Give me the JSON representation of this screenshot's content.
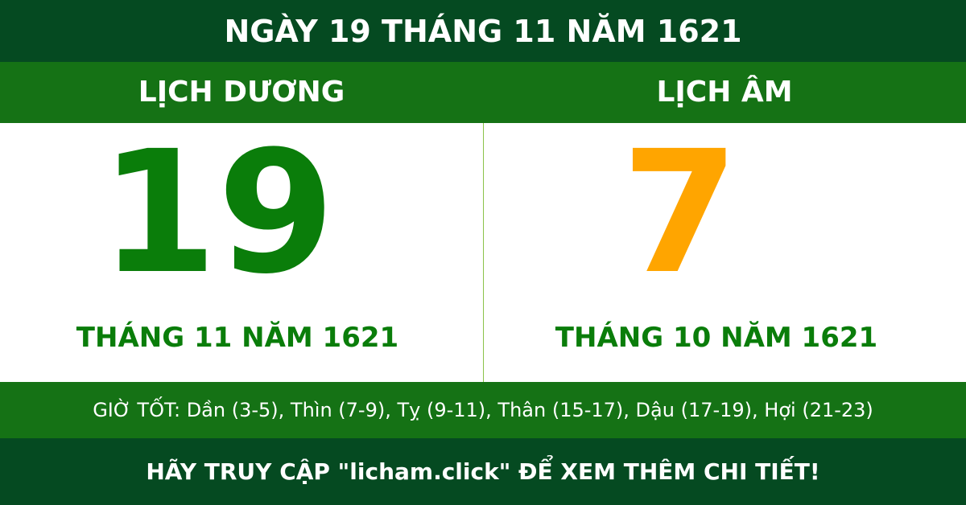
{
  "header": {
    "title": "NGÀY 19 THÁNG 11 NĂM 1621"
  },
  "solar": {
    "label": "LỊCH DƯƠNG",
    "day": "19",
    "month_year": "THÁNG 11 NĂM 1621"
  },
  "lunar": {
    "label": "LỊCH ÂM",
    "day": "7",
    "month_year": "THÁNG 10 NĂM 1621"
  },
  "good_hours": "GIỜ TỐT: Dần (3-5), Thìn (7-9), Tỵ (9-11), Thân (15-17), Dậu (17-19), Hợi (21-23)",
  "footer": {
    "text": "HÃY TRUY CẬP \"licham.click\" ĐỂ XEM THÊM CHI TIẾT!"
  }
}
